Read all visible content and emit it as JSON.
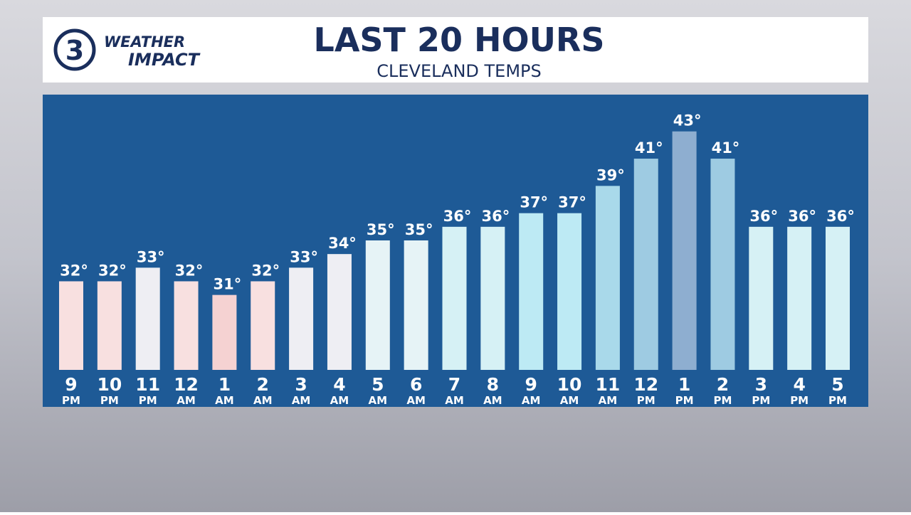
{
  "logo": {
    "number": "3",
    "line1": "WEATHER",
    "line2": "IMPACT"
  },
  "chart_data": {
    "type": "bar",
    "title": "LAST 20 HOURS",
    "subtitle": "CLEVELAND TEMPS",
    "categories": [
      "9",
      "10",
      "11",
      "12",
      "1",
      "2",
      "3",
      "4",
      "5",
      "6",
      "7",
      "8",
      "9",
      "10",
      "11",
      "12",
      "1",
      "2",
      "3",
      "4",
      "5"
    ],
    "periods": [
      "PM",
      "PM",
      "PM",
      "AM",
      "AM",
      "AM",
      "AM",
      "AM",
      "AM",
      "AM",
      "AM",
      "AM",
      "AM",
      "AM",
      "AM",
      "PM",
      "PM",
      "PM",
      "PM",
      "PM",
      "PM"
    ],
    "values": [
      32,
      32,
      33,
      32,
      31,
      32,
      33,
      34,
      35,
      35,
      36,
      36,
      37,
      37,
      39,
      41,
      43,
      41,
      36,
      36,
      36
    ],
    "value_labels": [
      "32°",
      "32°",
      "33°",
      "32°",
      "31°",
      "32°",
      "33°",
      "34°",
      "35°",
      "35°",
      "36°",
      "36°",
      "37°",
      "37°",
      "39°",
      "41°",
      "43°",
      "41°",
      "36°",
      "36°",
      "36°"
    ],
    "colors": [
      "#f8e0e0",
      "#f8e0e0",
      "#eeeef3",
      "#f8e0e0",
      "#f5d2d2",
      "#f8e0e0",
      "#eeeef3",
      "#eeeef3",
      "#e6f3f6",
      "#e6f3f6",
      "#d6f1f5",
      "#d6f1f5",
      "#bdeaf4",
      "#bdeaf4",
      "#a9d9ea",
      "#9ecbe2",
      "#8eaed0",
      "#9ecbe2",
      "#d6f1f5",
      "#d6f1f5",
      "#d6f1f5"
    ],
    "ylim": [
      25.5,
      45.7
    ]
  }
}
